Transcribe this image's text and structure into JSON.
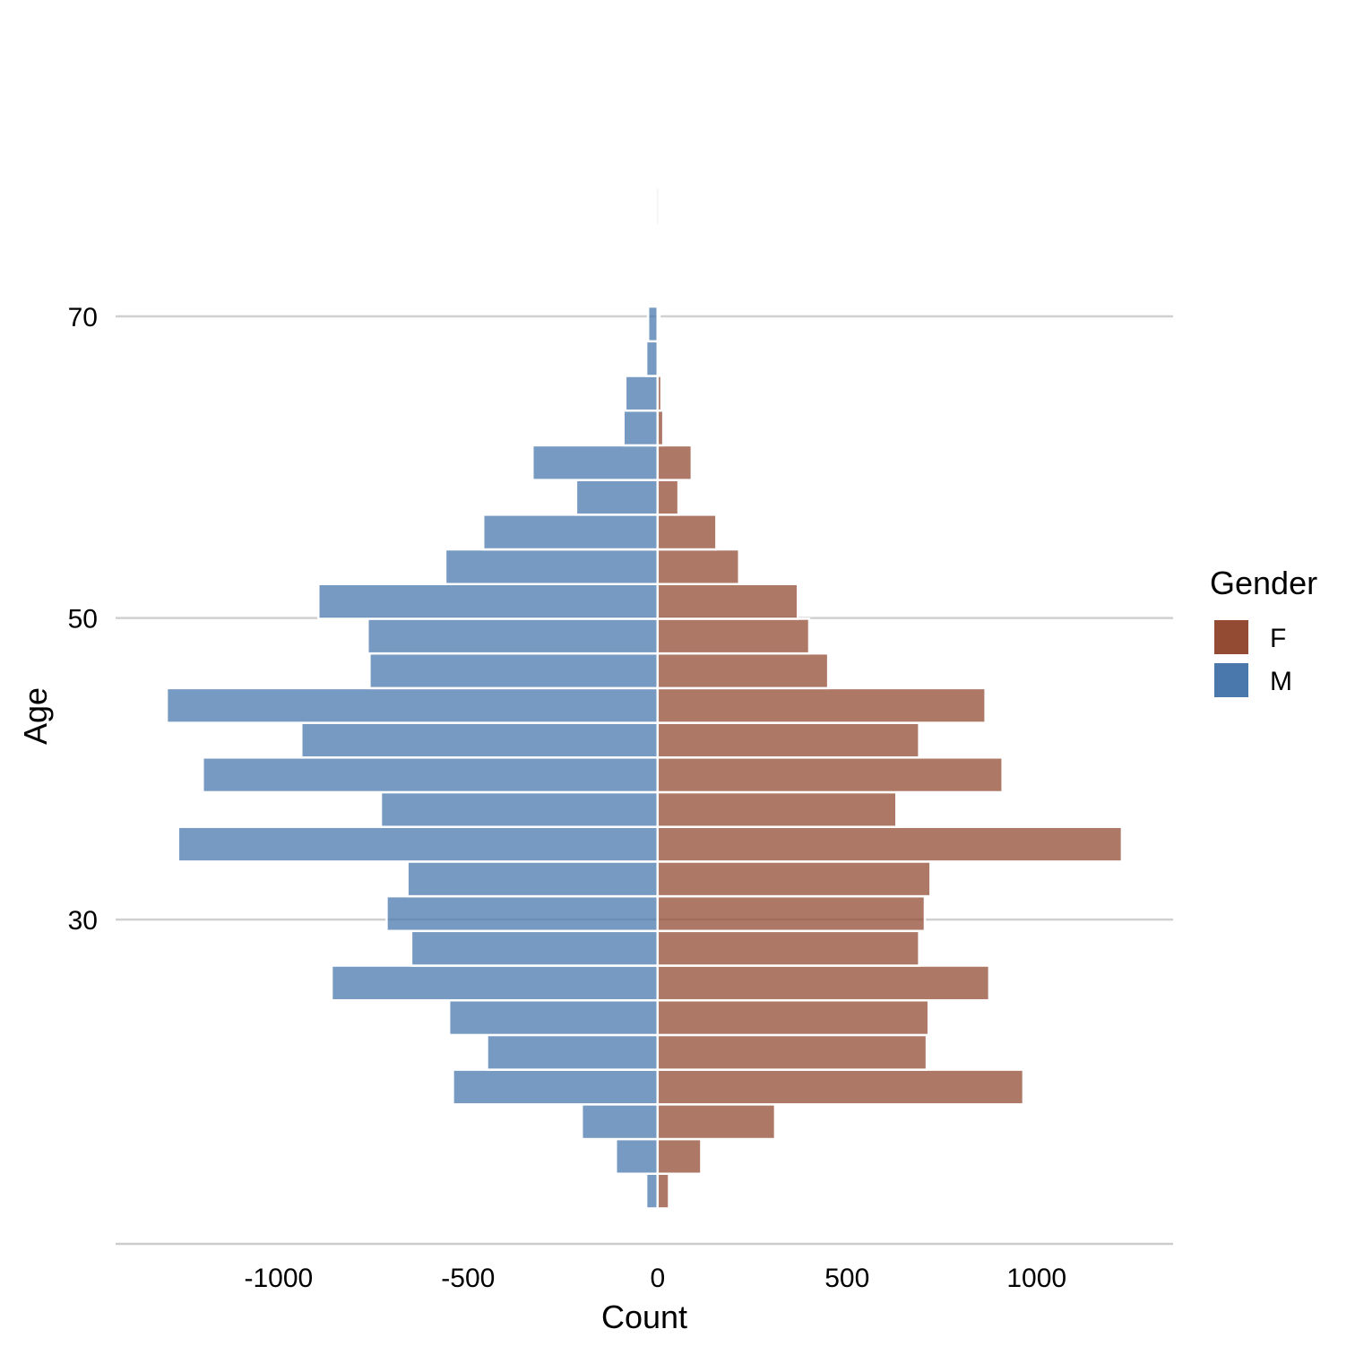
{
  "chart_data": {
    "type": "bar",
    "orientation": "horizontal",
    "subtype": "population-pyramid",
    "title": "",
    "xlabel": "Count",
    "ylabel": "Age",
    "xlim": [
      -1430,
      1360
    ],
    "ylim": [
      8.5,
      78.5
    ],
    "x_ticks": [
      -1000,
      -500,
      0,
      500,
      1000
    ],
    "x_tick_labels": [
      "-1000",
      "-500",
      "0",
      "500",
      "1000"
    ],
    "y_ticks": [
      30,
      50,
      70
    ],
    "y_tick_labels": [
      "30",
      "50",
      "70"
    ],
    "grid": {
      "major_y": true,
      "major_x": false
    },
    "legend": {
      "title": "Gender",
      "position": "right",
      "entries": [
        {
          "label": "F",
          "color": "#934b33"
        },
        {
          "label": "M",
          "color": "#4a78ad"
        }
      ]
    },
    "bin_width": 2.3,
    "age_bins": [
      12,
      14.3,
      16.6,
      18.9,
      21.2,
      23.5,
      25.8,
      28.1,
      30.4,
      32.7,
      35,
      37.3,
      39.6,
      41.9,
      44.2,
      46.5,
      48.8,
      51.1,
      53.4,
      55.7,
      58,
      60.3,
      62.6,
      64.9,
      67.2,
      69.5,
      71.8,
      74.1
    ],
    "series": [
      {
        "name": "F",
        "color": "#934b33",
        "values": [
          30,
          115,
          310,
          965,
          710,
          715,
          875,
          690,
          705,
          720,
          1225,
          630,
          910,
          690,
          865,
          450,
          400,
          370,
          215,
          155,
          55,
          90,
          15,
          10,
          0,
          5,
          0,
          0
        ]
      },
      {
        "name": "M",
        "color": "#4a78ad",
        "values": [
          -30,
          -110,
          -200,
          -540,
          -450,
          -550,
          -860,
          -650,
          -715,
          -660,
          -1265,
          -730,
          -1200,
          -940,
          -1295,
          -760,
          -765,
          -895,
          -560,
          -460,
          -215,
          -330,
          -90,
          -85,
          -30,
          -25,
          0,
          0
        ]
      }
    ]
  }
}
